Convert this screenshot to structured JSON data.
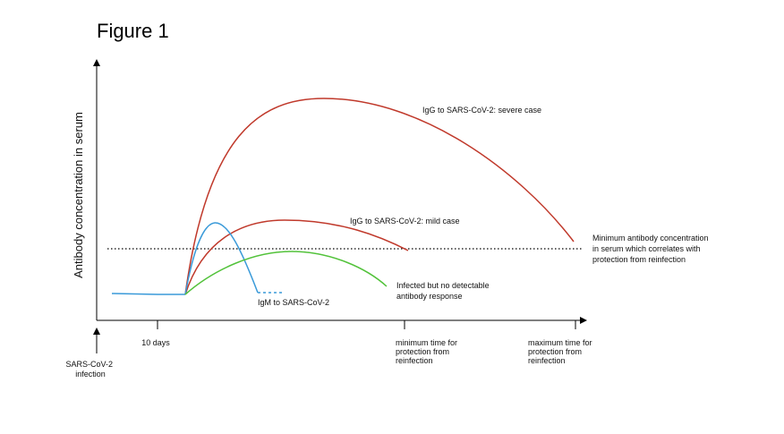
{
  "figure_title": "Figure 1",
  "colors": {
    "igg": "#c0392b",
    "igm": "#3a9ad9",
    "no_response": "#52c23a",
    "axis": "#000000",
    "threshold": "#000000"
  },
  "chart_data": {
    "type": "line",
    "title": "Figure 1",
    "ylabel": "Antibody concentration in serum",
    "xlabel": "",
    "x_ticks": [
      {
        "label_lines": [
          "10 days"
        ]
      },
      {
        "label_lines": [
          "minimum time for",
          "protection from",
          "reinfection"
        ]
      },
      {
        "label_lines": [
          "maximum time for",
          "protection from",
          "reinfection"
        ]
      }
    ],
    "origin_label_lines": [
      "SARS-CoV-2",
      "infection"
    ],
    "threshold": {
      "label_lines": [
        "Minimum antibody concentration",
        "in serum which correlates with",
        "protection from reinfection"
      ],
      "style": "dotted"
    },
    "series": [
      {
        "name": "IgG to SARS-CoV-2: severe case",
        "label_lines": [
          "IgG to SARS-CoV-2: severe case"
        ],
        "color": "#c0392b"
      },
      {
        "name": "IgG to SARS-CoV-2: mild case",
        "label_lines": [
          "IgG to SARS-CoV-2: mild case"
        ],
        "color": "#c0392b"
      },
      {
        "name": "IgM to SARS-CoV-2",
        "label_lines": [
          "IgM to SARS-CoV-2"
        ],
        "color": "#3a9ad9"
      },
      {
        "name": "Infected but no detectable antibody response",
        "label_lines": [
          "Infected but no detectable",
          "antibody response"
        ],
        "color": "#52c23a"
      }
    ],
    "grid": false,
    "legend": "none (curves labelled directly)"
  }
}
